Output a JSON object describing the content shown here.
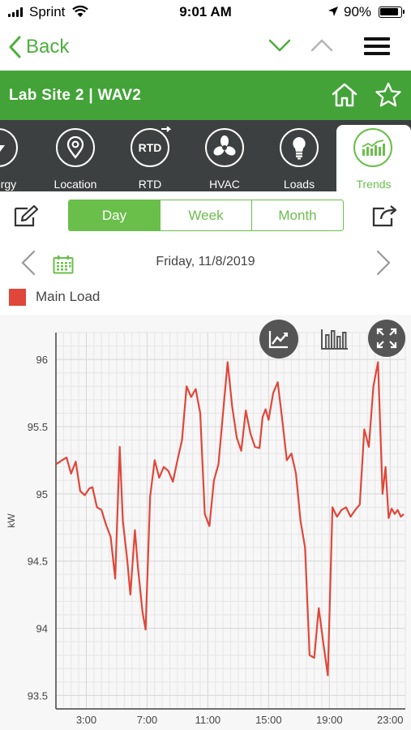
{
  "status_bar": {
    "carrier": "Sprint",
    "time": "9:01 AM",
    "battery": "90%"
  },
  "nav": {
    "back_label": "Back"
  },
  "site": {
    "title": "Lab Site 2 | WAV2"
  },
  "tabs": [
    {
      "label": "Energy",
      "icon": "lightning-icon"
    },
    {
      "label": "Location",
      "icon": "location-pin-icon"
    },
    {
      "label": "RTD",
      "icon": "rtd-icon",
      "icon_text": "RTD"
    },
    {
      "label": "HVAC",
      "icon": "fan-icon"
    },
    {
      "label": "Loads",
      "icon": "light-bulb-icon"
    },
    {
      "label": "Trends",
      "icon": "trend-chart-icon",
      "active": true
    }
  ],
  "range": {
    "options": [
      "Day",
      "Week",
      "Month"
    ],
    "selected": "Day"
  },
  "date": {
    "label": "Friday, 11/8/2019"
  },
  "legend": {
    "series_name": "Main Load",
    "color": "#e0473a"
  },
  "colors": {
    "accent_green": "#6abf4b",
    "header_green": "#43a338",
    "tab_bar": "#3d4040",
    "series": "#e0473a"
  },
  "chart_data": {
    "type": "line",
    "ylabel": "kW",
    "ylim": [
      93.4,
      96.2
    ],
    "xlim": [
      1.0,
      24.0
    ],
    "yticks": [
      "93.5",
      "94",
      "94.5",
      "95",
      "95.5",
      "96"
    ],
    "ytick_values": [
      93.5,
      94.0,
      94.5,
      95.0,
      95.5,
      96.0
    ],
    "xticks": [
      "3:00",
      "7:00",
      "11:00",
      "15:00",
      "19:00",
      "23:00"
    ],
    "xtick_values": [
      3,
      7,
      11,
      15,
      19,
      23
    ],
    "grid": true,
    "series": [
      {
        "name": "Main Load",
        "color": "#e0473a",
        "x": [
          1.0,
          1.4,
          1.7,
          2.0,
          2.3,
          2.6,
          2.9,
          3.2,
          3.4,
          3.7,
          4.0,
          4.3,
          4.6,
          4.9,
          5.2,
          5.4,
          5.7,
          5.9,
          6.2,
          6.4,
          6.7,
          6.9,
          7.2,
          7.5,
          7.8,
          8.1,
          8.4,
          8.7,
          9.0,
          9.3,
          9.6,
          9.9,
          10.2,
          10.5,
          10.8,
          11.1,
          11.4,
          11.7,
          12.0,
          12.3,
          12.6,
          12.9,
          13.2,
          13.5,
          13.8,
          14.1,
          14.4,
          14.6,
          14.8,
          15.0,
          15.3,
          15.6,
          15.9,
          16.2,
          16.5,
          16.8,
          17.1,
          17.4,
          17.7,
          18.0,
          18.3,
          18.6,
          18.9,
          19.2,
          19.5,
          19.8,
          20.1,
          20.4,
          20.7,
          21.0,
          21.3,
          21.6,
          21.9,
          22.2,
          22.5,
          22.7,
          22.9,
          23.1,
          23.3,
          23.5,
          23.7,
          23.9
        ],
        "values": [
          95.22,
          95.25,
          95.27,
          95.15,
          95.24,
          95.02,
          94.99,
          95.04,
          95.05,
          94.9,
          94.88,
          94.77,
          94.68,
          94.37,
          95.35,
          94.8,
          94.5,
          94.25,
          94.73,
          94.45,
          94.12,
          93.99,
          94.98,
          95.25,
          95.12,
          95.2,
          95.17,
          95.09,
          95.25,
          95.4,
          95.8,
          95.72,
          95.78,
          95.6,
          94.85,
          94.76,
          95.1,
          95.22,
          95.6,
          95.98,
          95.65,
          95.42,
          95.32,
          95.62,
          95.45,
          95.35,
          95.34,
          95.57,
          95.63,
          95.55,
          95.75,
          95.83,
          95.55,
          95.25,
          95.3,
          95.15,
          94.8,
          94.6,
          93.8,
          93.78,
          94.15,
          93.89,
          93.65,
          94.9,
          94.83,
          94.88,
          94.9,
          94.83,
          94.88,
          94.92,
          95.48,
          95.35,
          95.8,
          95.98,
          95.0,
          95.2,
          94.82,
          94.89,
          94.85,
          94.88,
          94.83,
          94.85
        ]
      }
    ]
  }
}
